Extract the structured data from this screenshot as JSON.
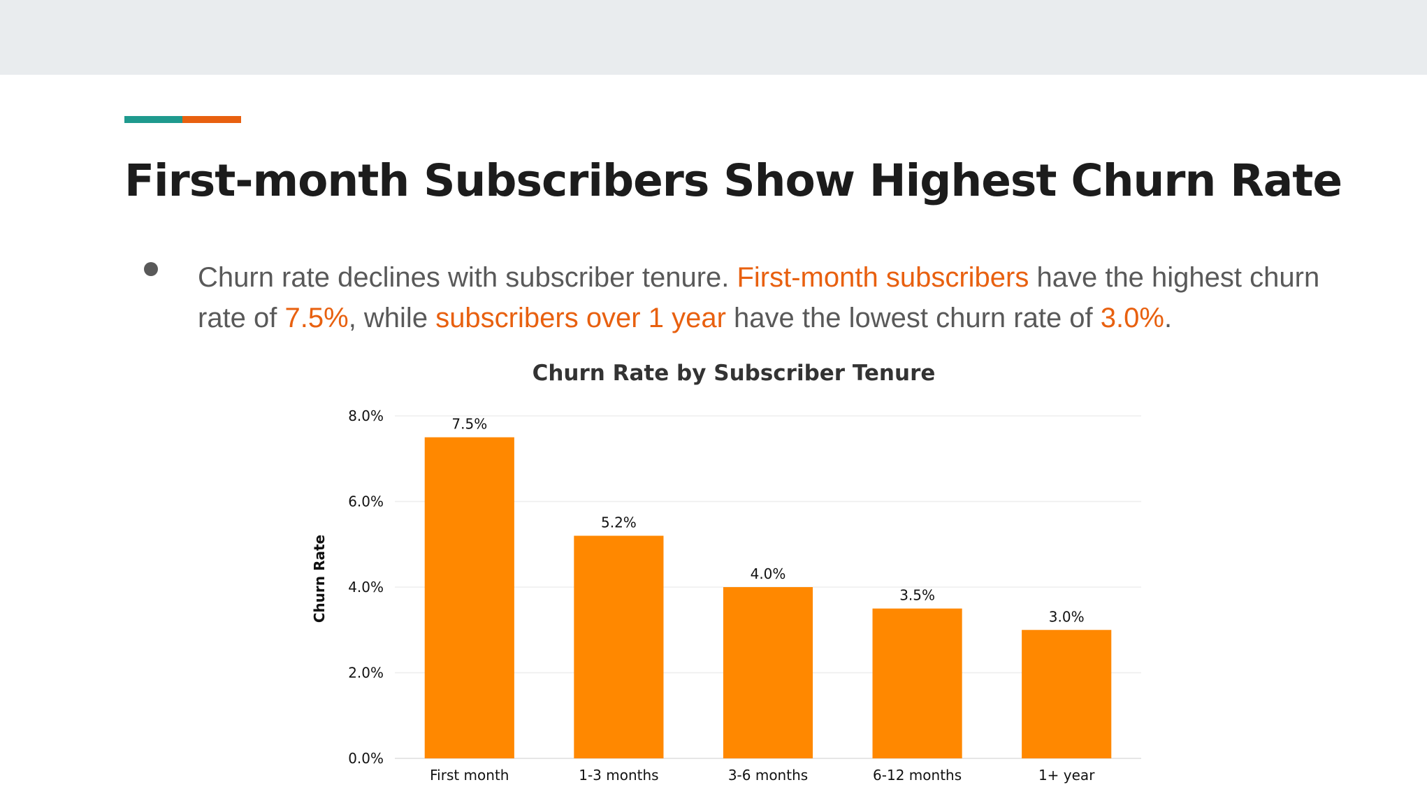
{
  "slide": {
    "title": "First-month Subscribers Show Highest Churn Rate",
    "bullet": {
      "t1": "Churn rate declines with subscriber tenure. ",
      "h1": "First-month subscribers",
      "t2": " have the highest churn rate of ",
      "h2": "7.5%",
      "t3": ", while ",
      "h3": "subscribers over 1 year",
      "t4": " have the lowest churn rate of ",
      "h4": "3.0%",
      "t5": "."
    },
    "colors": {
      "topbar": "#e9ecee",
      "accent_teal": "#1f9a8e",
      "accent_orange": "#e8600f",
      "highlight": "#e8600f"
    }
  },
  "chart_data": {
    "type": "bar",
    "title": "Churn Rate by Subscriber Tenure",
    "xlabel": "",
    "ylabel": "Churn Rate",
    "categories": [
      "First month",
      "1-3 months",
      "3-6 months",
      "6-12 months",
      "1+ year"
    ],
    "values": [
      7.5,
      5.2,
      4.0,
      3.5,
      3.0
    ],
    "value_labels": [
      "7.5%",
      "5.2%",
      "4.0%",
      "3.5%",
      "3.0%"
    ],
    "ylim": [
      0,
      8
    ],
    "yticks": [
      0,
      2,
      4,
      6,
      8
    ],
    "ytick_labels": [
      "0.0%",
      "2.0%",
      "4.0%",
      "6.0%",
      "8.0%"
    ],
    "grid": true,
    "bar_color": "#ff8800"
  }
}
